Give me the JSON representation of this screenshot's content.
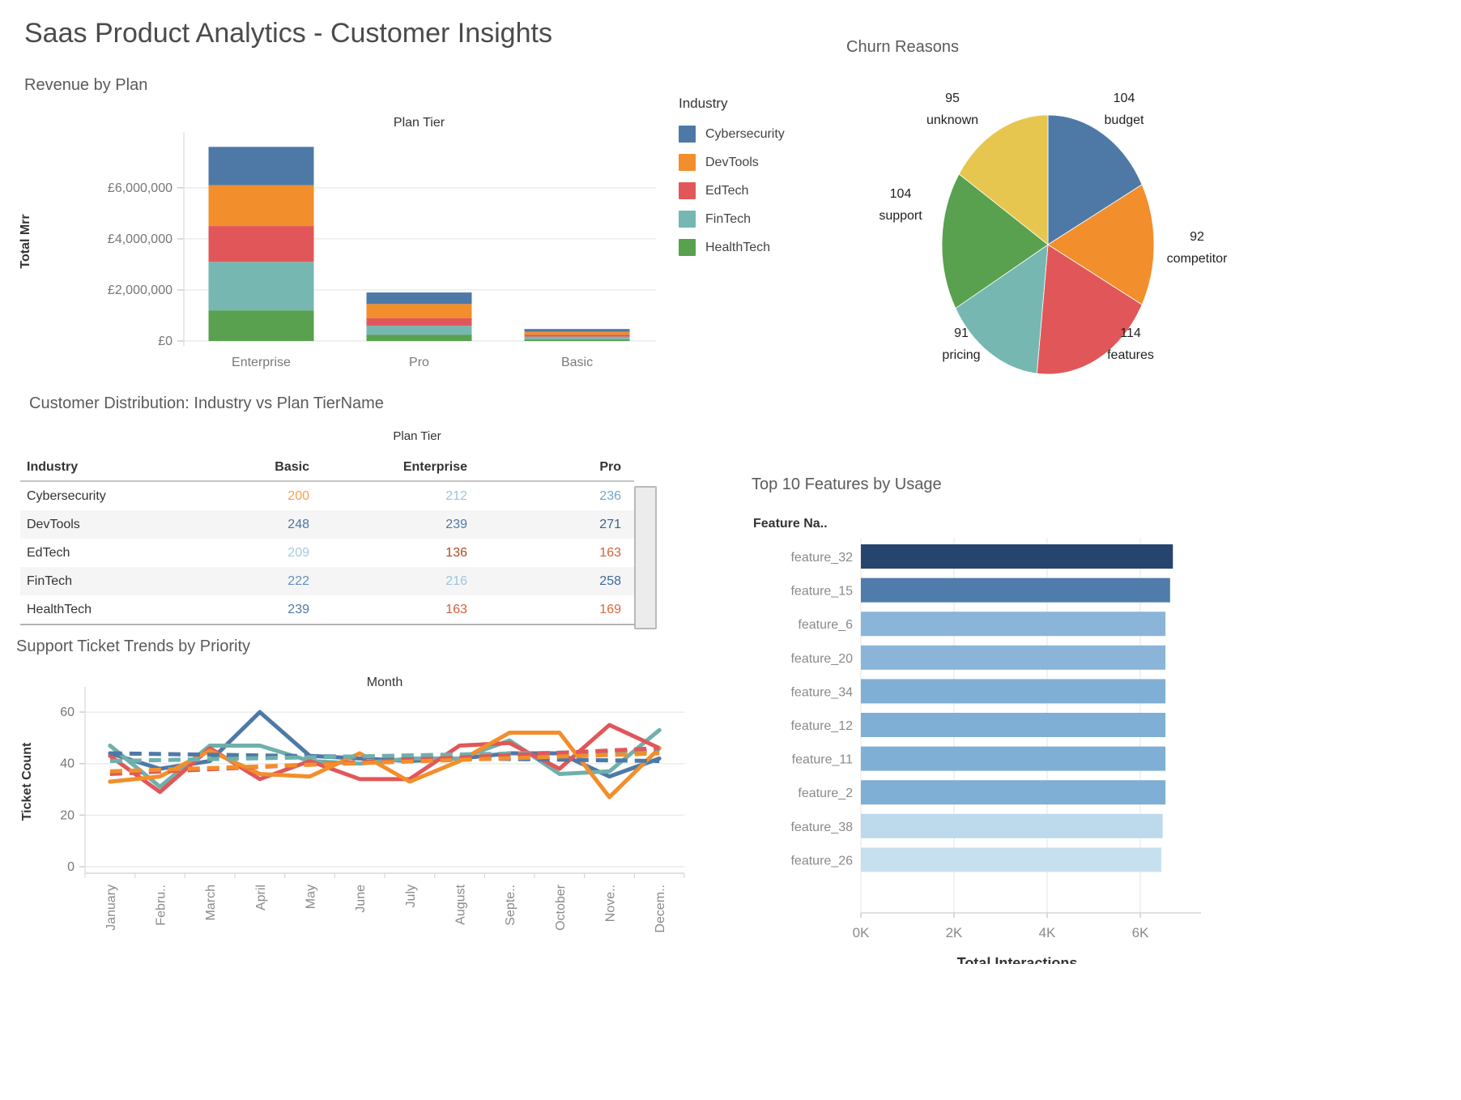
{
  "title": "Saas Product Analytics - Customer Insights",
  "legend": {
    "title": "Industry",
    "items": [
      {
        "label": "Cybersecurity",
        "color": "#4e79a7"
      },
      {
        "label": "DevTools",
        "color": "#f28e2b"
      },
      {
        "label": "EdTech",
        "color": "#e15759"
      },
      {
        "label": "FinTech",
        "color": "#76b7b2"
      },
      {
        "label": "HealthTech",
        "color": "#59a14f"
      }
    ]
  },
  "chart_data": [
    {
      "id": "revenue_by_plan",
      "type": "bar",
      "stacked": true,
      "section_label": "Revenue by Plan",
      "title": "Plan Tier",
      "ylabel": "Total Mrr",
      "categories": [
        "Enterprise",
        "Pro",
        "Basic"
      ],
      "yticks": [
        {
          "value": 0,
          "label": "£0"
        },
        {
          "value": 2000000,
          "label": "£2,000,000"
        },
        {
          "value": 4000000,
          "label": "£4,000,000"
        },
        {
          "value": 6000000,
          "label": "£6,000,000"
        }
      ],
      "ylim": [
        0,
        7800000
      ],
      "series": [
        {
          "name": "HealthTech",
          "color": "#59a14f",
          "values": [
            1200000,
            250000,
            70000
          ]
        },
        {
          "name": "FinTech",
          "color": "#76b7b2",
          "values": [
            1900000,
            350000,
            100000
          ]
        },
        {
          "name": "EdTech",
          "color": "#e15759",
          "values": [
            1400000,
            300000,
            80000
          ]
        },
        {
          "name": "DevTools",
          "color": "#f28e2b",
          "values": [
            1600000,
            550000,
            110000
          ]
        },
        {
          "name": "Cybersecurity",
          "color": "#4e79a7",
          "values": [
            1500000,
            450000,
            110000
          ]
        }
      ]
    },
    {
      "id": "churn_reasons",
      "type": "pie",
      "title": "Churn Reasons",
      "labels": [
        "budget",
        "competitor",
        "features",
        "pricing",
        "support",
        "unknown"
      ],
      "values": [
        104,
        92,
        114,
        91,
        104,
        95
      ],
      "colors": [
        "#4e79a7",
        "#f28e2b",
        "#e15759",
        "#76b7b2",
        "#59a14f",
        "#e6c64f"
      ]
    },
    {
      "id": "customer_distribution",
      "type": "table",
      "title": "Customer Distribution: Industry vs Plan TierName",
      "column_group": "Plan Tier",
      "row_header": "Industry",
      "columns": [
        "Basic",
        "Enterprise",
        "Pro"
      ],
      "rows": [
        {
          "industry": "Cybersecurity",
          "values": [
            200,
            212,
            236
          ],
          "colors": [
            "#f2a14f",
            "#9cc5e0",
            "#74a7cd"
          ]
        },
        {
          "industry": "DevTools",
          "values": [
            248,
            239,
            271
          ],
          "colors": [
            "#4a76a6",
            "#4e79a7",
            "#38618f"
          ]
        },
        {
          "industry": "EdTech",
          "values": [
            209,
            136,
            163
          ],
          "colors": [
            "#a6cade",
            "#aa4a21",
            "#d2603b"
          ]
        },
        {
          "industry": "FinTech",
          "values": [
            222,
            216,
            258
          ],
          "colors": [
            "#6391bb",
            "#9cc5e0",
            "#41689b"
          ]
        },
        {
          "industry": "HealthTech",
          "values": [
            239,
            163,
            169
          ],
          "colors": [
            "#4e79a7",
            "#d2603b",
            "#d66a40"
          ]
        }
      ]
    },
    {
      "id": "support_tickets",
      "type": "line",
      "section_label": "Support Ticket Trends by Priority",
      "title": "Month",
      "ylabel": "Ticket Count",
      "yticks": [
        0,
        20,
        40,
        60
      ],
      "ylim": [
        0,
        66
      ],
      "categories": [
        "January",
        "Febru..",
        "March",
        "April",
        "May",
        "June",
        "July",
        "August",
        "Septe..",
        "October",
        "Nove..",
        "Decem.."
      ],
      "series": [
        {
          "name": "blue",
          "color": "#4e79a7",
          "style": "solid",
          "values": [
            44,
            38,
            41,
            60,
            43,
            42,
            41,
            42,
            44,
            44,
            35,
            42
          ]
        },
        {
          "name": "teal",
          "color": "#6fb0ab",
          "style": "solid",
          "values": [
            47,
            31,
            47,
            47,
            41,
            40,
            42,
            42,
            49,
            36,
            37,
            53
          ]
        },
        {
          "name": "red",
          "color": "#e15759",
          "style": "solid",
          "values": [
            43,
            29,
            46,
            34,
            41,
            34,
            34,
            47,
            48,
            38,
            55,
            46
          ]
        },
        {
          "name": "orange",
          "color": "#f28e2b",
          "style": "solid",
          "values": [
            33,
            35,
            45,
            36,
            35,
            44,
            33,
            41,
            52,
            52,
            27,
            46
          ]
        }
      ],
      "trend_series": [
        {
          "name": "blue-trend",
          "color": "#4e79a7",
          "style": "dashed",
          "start": 44,
          "end": 41
        },
        {
          "name": "teal-trend",
          "color": "#6fb0ab",
          "style": "dashed",
          "start": 41,
          "end": 45
        },
        {
          "name": "red-trend",
          "color": "#e15759",
          "style": "dashed",
          "start": 36,
          "end": 46
        },
        {
          "name": "orange-trend",
          "color": "#f28e2b",
          "style": "dashed",
          "start": 37,
          "end": 44
        }
      ]
    },
    {
      "id": "top_features",
      "type": "bar",
      "orientation": "horizontal",
      "section_label": "Top 10 Features by Usage",
      "col_label": "Feature Na..",
      "xlabel": "Total Interactions",
      "xticks": [
        {
          "value": 0,
          "label": "0K"
        },
        {
          "value": 2000,
          "label": "2K"
        },
        {
          "value": 4000,
          "label": "4K"
        },
        {
          "value": 6000,
          "label": "6K"
        }
      ],
      "xlim": [
        0,
        7000
      ],
      "categories": [
        "feature_32",
        "feature_15",
        "feature_6",
        "feature_20",
        "feature_34",
        "feature_12",
        "feature_11",
        "feature_2",
        "feature_38",
        "feature_26"
      ],
      "values": [
        6700,
        6640,
        6540,
        6540,
        6540,
        6540,
        6540,
        6540,
        6480,
        6450
      ],
      "colors": [
        "#26456e",
        "#4f7cab",
        "#8ab5d8",
        "#8ab5d8",
        "#7fafd4",
        "#7fafd4",
        "#7fafd4",
        "#7fafd4",
        "#bdd9ec",
        "#c7e0f0"
      ]
    }
  ]
}
